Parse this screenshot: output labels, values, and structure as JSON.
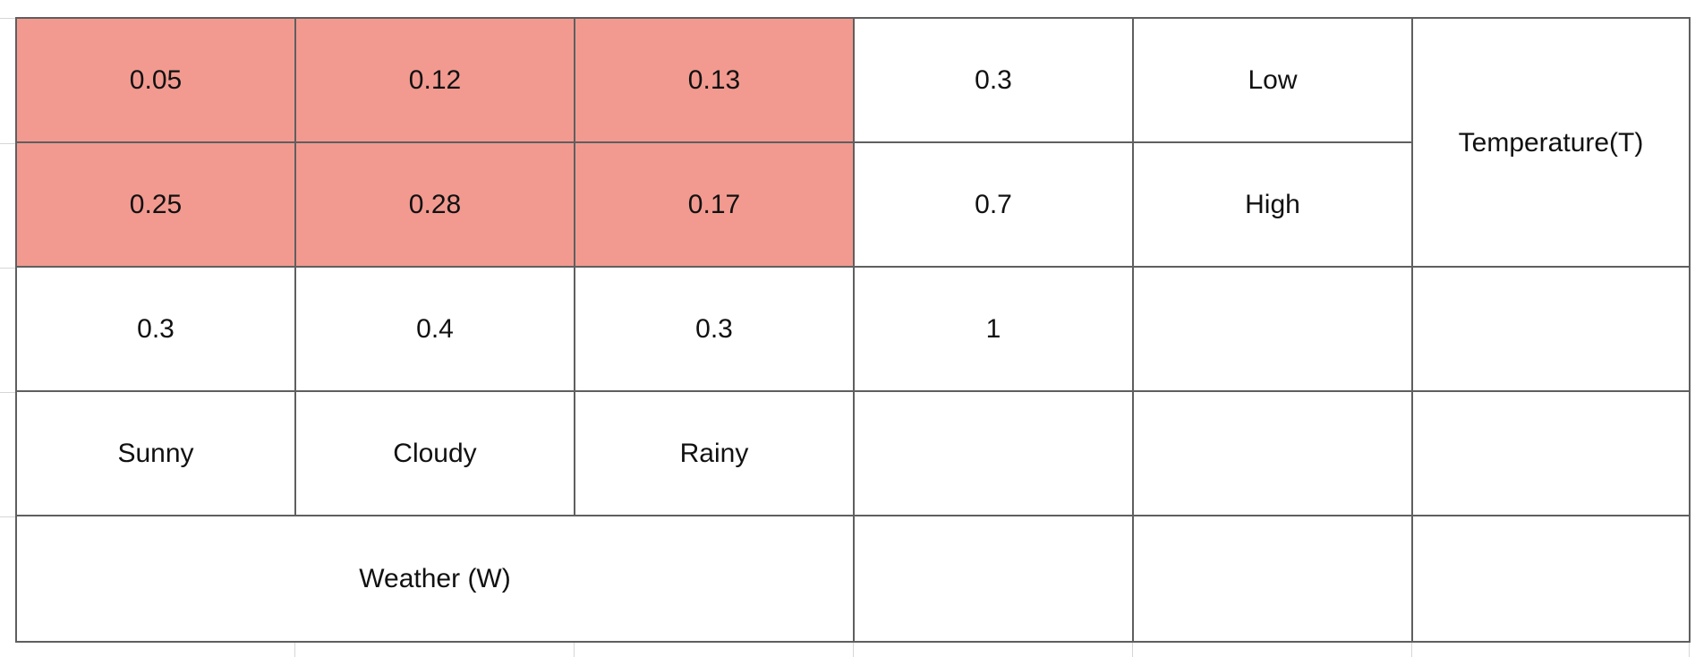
{
  "colors": {
    "highlight": "#f29a90",
    "border": "#5f5f5f",
    "background": "#ffffff"
  },
  "table": {
    "rows": [
      [
        "0.05",
        "0.12",
        "0.13",
        "0.3",
        "Low",
        "Temperature(T)"
      ],
      [
        "0.25",
        "0.28",
        "0.17",
        "0.7",
        "High",
        ""
      ],
      [
        "0.3",
        "0.4",
        "0.3",
        "1",
        "",
        ""
      ],
      [
        "Sunny",
        "Cloudy",
        "Rainy",
        "",
        "",
        ""
      ],
      [
        "Weather (W)",
        "",
        "",
        ""
      ]
    ]
  }
}
